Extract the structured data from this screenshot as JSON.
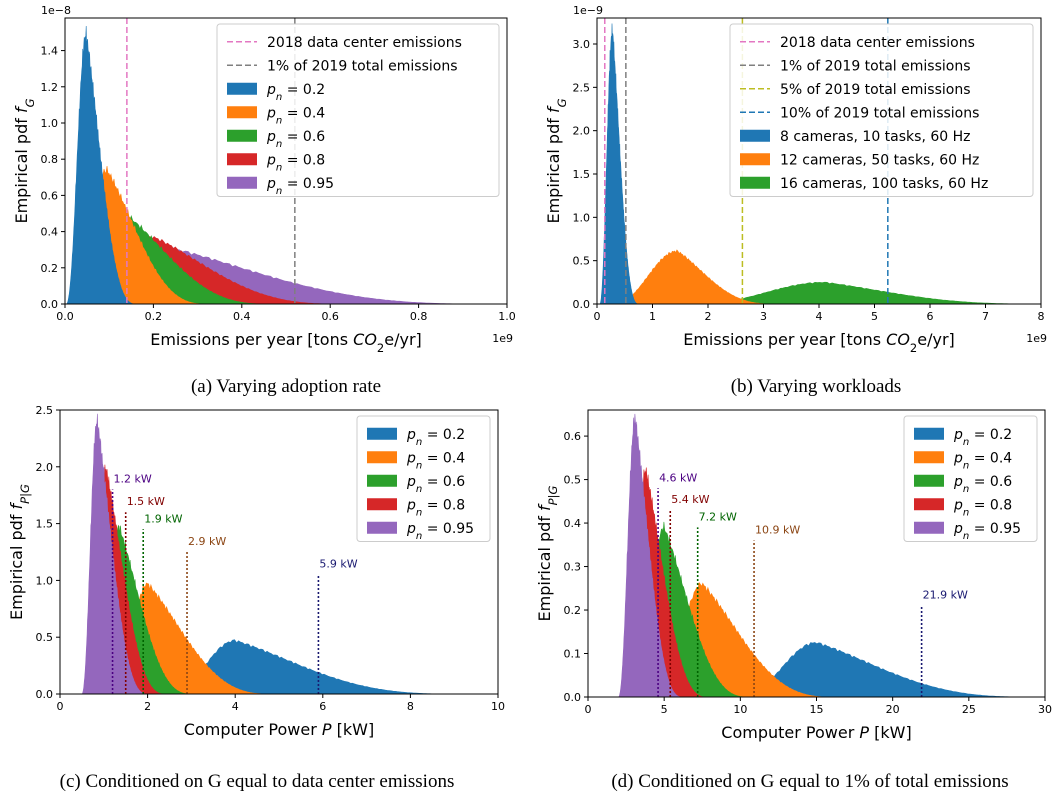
{
  "chart_data": [
    {
      "id": "a",
      "type": "area",
      "caption": "(a) Varying adoption rate",
      "xlabel": "Emissions per year [tons CO₂e/yr]",
      "ylabel": "Empirical pdf f_G",
      "x_multiplier": "1e9",
      "y_multiplier": "1e−8",
      "xlim": [
        0,
        1.0
      ],
      "ylim": [
        0,
        1.58
      ],
      "xticks": [
        0,
        0.2,
        0.4,
        0.6,
        0.8,
        1.0
      ],
      "xtick_labels": [
        "0.0",
        "0.2",
        "0.4",
        "0.6",
        "0.8",
        "1.0"
      ],
      "yticks": [
        0,
        0.2,
        0.4,
        0.6,
        0.8,
        1.0,
        1.2,
        1.4
      ],
      "ytick_labels": [
        "0.0",
        "0.2",
        "0.4",
        "0.6",
        "0.8",
        "1.0",
        "1.2",
        "1.4"
      ],
      "legend_position": "top-right",
      "vlines": [
        {
          "label": "2018 data center emissions",
          "x": 0.14,
          "color": "#e377c2"
        },
        {
          "label": "1% of 2019 total emissions",
          "x": 0.52,
          "color": "#7f7f7f"
        }
      ],
      "series": [
        {
          "name": "p_n = 0.95",
          "color": "#9467bd",
          "peak_x": 0.22,
          "peak_y": 0.32,
          "start_x": 0.02,
          "end_x": 0.95
        },
        {
          "name": "p_n = 0.8",
          "color": "#d62728",
          "peak_x": 0.2,
          "peak_y": 0.37,
          "start_x": 0.01,
          "end_x": 0.62
        },
        {
          "name": "p_n = 0.6",
          "color": "#2ca02c",
          "peak_x": 0.14,
          "peak_y": 0.49,
          "start_x": 0.008,
          "end_x": 0.46
        },
        {
          "name": "p_n = 0.4",
          "color": "#ff7f0e",
          "peak_x": 0.095,
          "peak_y": 0.74,
          "start_x": 0.005,
          "end_x": 0.32
        },
        {
          "name": "p_n = 0.2",
          "color": "#1f77b4",
          "peak_x": 0.048,
          "peak_y": 1.49,
          "start_x": 0.003,
          "end_x": 0.16
        }
      ]
    },
    {
      "id": "b",
      "type": "area",
      "caption": "(b) Varying workloads",
      "xlabel": "Emissions per year [tons CO₂e/yr]",
      "ylabel": "Empirical pdf f_G",
      "x_multiplier": "1e9",
      "y_multiplier": "1e−9",
      "xlim": [
        0,
        8
      ],
      "ylim": [
        0,
        3.3
      ],
      "xticks": [
        0,
        1,
        2,
        3,
        4,
        5,
        6,
        7,
        8
      ],
      "xtick_labels": [
        "0",
        "1",
        "2",
        "3",
        "4",
        "5",
        "6",
        "7",
        "8"
      ],
      "yticks": [
        0,
        0.5,
        1.0,
        1.5,
        2.0,
        2.5,
        3.0
      ],
      "ytick_labels": [
        "0.0",
        "0.5",
        "1.0",
        "1.5",
        "2.0",
        "2.5",
        "3.0"
      ],
      "legend_position": "top-right",
      "vlines": [
        {
          "label": "2018 data center emissions",
          "x": 0.14,
          "color": "#e377c2"
        },
        {
          "label": "1% of 2019 total emissions",
          "x": 0.52,
          "color": "#7f7f7f"
        },
        {
          "label": "5% of 2019 total emissions",
          "x": 2.62,
          "color": "#bcbd22"
        },
        {
          "label": "10% of 2019 total emissions",
          "x": 5.24,
          "color": "#1f77b4"
        }
      ],
      "series": [
        {
          "name": "16 cameras, 100 tasks, 60 Hz",
          "color": "#2ca02c",
          "peak_x": 4.1,
          "peak_y": 0.25,
          "start_x": 1.8,
          "end_x": 8.0
        },
        {
          "name": "12 cameras, 50 tasks, 60 Hz",
          "color": "#ff7f0e",
          "peak_x": 1.45,
          "peak_y": 0.61,
          "start_x": 0.3,
          "end_x": 3.2
        },
        {
          "name": "8 cameras, 10 tasks, 60 Hz",
          "color": "#1f77b4",
          "peak_x": 0.28,
          "peak_y": 3.15,
          "start_x": 0.05,
          "end_x": 0.75
        }
      ]
    },
    {
      "id": "c",
      "type": "area",
      "caption": "(c) Conditioned on G equal to data center emissions",
      "xlabel": "Computer Power P [kW]",
      "ylabel": "Empirical pdf f_P|G",
      "xlim": [
        0,
        10
      ],
      "ylim": [
        0,
        2.5
      ],
      "xticks": [
        0,
        2,
        4,
        6,
        8,
        10
      ],
      "xtick_labels": [
        "0",
        "2",
        "4",
        "6",
        "8",
        "10"
      ],
      "yticks": [
        0,
        0.5,
        1.0,
        1.5,
        2.0,
        2.5
      ],
      "ytick_labels": [
        "0.0",
        "0.5",
        "1.0",
        "1.5",
        "2.0",
        "2.5"
      ],
      "legend_position": "top-right",
      "annotations": [
        {
          "text": "1.2 kW",
          "x": 1.2,
          "y": 1.8,
          "color": "#4b0082"
        },
        {
          "text": "1.5 kW",
          "x": 1.5,
          "y": 1.6,
          "color": "#800000"
        },
        {
          "text": "1.9 kW",
          "x": 1.9,
          "y": 1.45,
          "color": "#006400"
        },
        {
          "text": "2.9 kW",
          "x": 2.9,
          "y": 1.25,
          "color": "#8b4513"
        },
        {
          "text": "5.9 kW",
          "x": 5.9,
          "y": 1.05,
          "color": "#191970"
        }
      ],
      "series": [
        {
          "name": "p_n = 0.2",
          "color": "#1f77b4",
          "peak_x": 4.0,
          "peak_y": 0.47,
          "start_x": 2.5,
          "end_x": 9.0
        },
        {
          "name": "p_n = 0.4",
          "color": "#ff7f0e",
          "peak_x": 2.0,
          "peak_y": 0.97,
          "start_x": 1.2,
          "end_x": 4.8
        },
        {
          "name": "p_n = 0.6",
          "color": "#2ca02c",
          "peak_x": 1.35,
          "peak_y": 1.47,
          "start_x": 0.8,
          "end_x": 3.0
        },
        {
          "name": "p_n = 0.8",
          "color": "#d62728",
          "peak_x": 1.05,
          "peak_y": 1.98,
          "start_x": 0.6,
          "end_x": 2.4
        },
        {
          "name": "p_n = 0.95",
          "color": "#9467bd",
          "peak_x": 0.85,
          "peak_y": 2.4,
          "start_x": 0.5,
          "end_x": 2.0
        }
      ]
    },
    {
      "id": "d",
      "type": "area",
      "caption": "(d) Conditioned on G equal to 1% of total emissions",
      "xlabel": "Computer Power P [kW]",
      "ylabel": "Empirical pdf f_P|G",
      "xlim": [
        0,
        30
      ],
      "ylim": [
        0,
        0.66
      ],
      "xticks": [
        0,
        5,
        10,
        15,
        20,
        25,
        30
      ],
      "xtick_labels": [
        "0",
        "5",
        "10",
        "15",
        "20",
        "25",
        "30"
      ],
      "yticks": [
        0,
        0.1,
        0.2,
        0.3,
        0.4,
        0.5,
        0.6
      ],
      "ytick_labels": [
        "0.0",
        "0.1",
        "0.2",
        "0.3",
        "0.4",
        "0.5",
        "0.6"
      ],
      "legend_position": "top-right",
      "annotations": [
        {
          "text": "4.6 kW",
          "x": 4.6,
          "y": 0.48,
          "color": "#4b0082"
        },
        {
          "text": "5.4 kW",
          "x": 5.4,
          "y": 0.43,
          "color": "#800000"
        },
        {
          "text": "7.2 kW",
          "x": 7.2,
          "y": 0.39,
          "color": "#006400"
        },
        {
          "text": "10.9 kW",
          "x": 10.9,
          "y": 0.36,
          "color": "#8b4513"
        },
        {
          "text": "21.9 kW",
          "x": 21.9,
          "y": 0.21,
          "color": "#191970"
        }
      ],
      "series": [
        {
          "name": "p_n = 0.2",
          "color": "#1f77b4",
          "peak_x": 15.0,
          "peak_y": 0.125,
          "start_x": 10.0,
          "end_x": 29.0
        },
        {
          "name": "p_n = 0.4",
          "color": "#ff7f0e",
          "peak_x": 7.5,
          "peak_y": 0.26,
          "start_x": 4.5,
          "end_x": 16.0
        },
        {
          "name": "p_n = 0.6",
          "color": "#2ca02c",
          "peak_x": 5.0,
          "peak_y": 0.39,
          "start_x": 3.0,
          "end_x": 10.5
        },
        {
          "name": "p_n = 0.8",
          "color": "#d62728",
          "peak_x": 3.8,
          "peak_y": 0.52,
          "start_x": 2.4,
          "end_x": 7.8
        },
        {
          "name": "p_n = 0.95",
          "color": "#9467bd",
          "peak_x": 3.1,
          "peak_y": 0.64,
          "start_x": 2.0,
          "end_x": 6.2
        }
      ]
    }
  ]
}
